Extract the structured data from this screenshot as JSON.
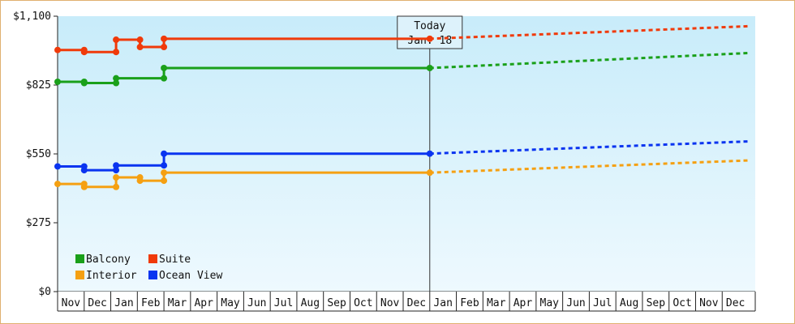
{
  "chart_data": {
    "type": "line",
    "title": "",
    "xlabel": "",
    "ylabel": "",
    "x_months": [
      "Nov",
      "Dec",
      "Jan",
      "Feb",
      "Mar",
      "Apr",
      "May",
      "Jun",
      "Jul",
      "Aug",
      "Sep",
      "Oct",
      "Nov",
      "Dec",
      "Jan",
      "Feb",
      "Mar",
      "Apr",
      "May",
      "Jun",
      "Jul",
      "Aug",
      "Sep",
      "Oct",
      "Nov",
      "Dec"
    ],
    "y_ticks": [
      {
        "value": 0,
        "label": "$0"
      },
      {
        "value": 275,
        "label": "$275"
      },
      {
        "value": 550,
        "label": "$550"
      },
      {
        "value": 825,
        "label": "$825"
      },
      {
        "value": 1100,
        "label": "$1,100"
      }
    ],
    "ylim": [
      0,
      1100
    ],
    "grid": false,
    "legend_position": "bottom-left",
    "today_marker": {
      "line1": "Today",
      "line2": "Jan. 18",
      "month_index": 14.0
    },
    "series": [
      {
        "name": "Suite",
        "color": "#f03a0a",
        "actual": [
          [
            0.0,
            965
          ],
          [
            1.0,
            965
          ],
          [
            1.0,
            957
          ],
          [
            2.2,
            957
          ],
          [
            2.2,
            1006
          ],
          [
            3.1,
            1006
          ],
          [
            3.1,
            977
          ],
          [
            4.0,
            977
          ],
          [
            4.0,
            1010
          ],
          [
            14.0,
            1010
          ]
        ],
        "projected": [
          [
            14.0,
            1010
          ],
          [
            26.0,
            1060
          ]
        ]
      },
      {
        "name": "Balcony",
        "color": "#1aa01a",
        "actual": [
          [
            0.0,
            838
          ],
          [
            1.0,
            838
          ],
          [
            1.0,
            833
          ],
          [
            2.2,
            833
          ],
          [
            2.2,
            852
          ],
          [
            4.0,
            852
          ],
          [
            4.0,
            893
          ],
          [
            14.0,
            893
          ]
        ],
        "projected": [
          [
            14.0,
            893
          ],
          [
            26.0,
            953
          ]
        ]
      },
      {
        "name": "Ocean View",
        "color": "#0a34f0",
        "actual": [
          [
            0.0,
            500
          ],
          [
            1.0,
            500
          ],
          [
            1.0,
            485
          ],
          [
            2.2,
            485
          ],
          [
            2.2,
            504
          ],
          [
            4.0,
            504
          ],
          [
            4.0,
            551
          ],
          [
            14.0,
            551
          ]
        ],
        "projected": [
          [
            14.0,
            551
          ],
          [
            26.0,
            600
          ]
        ]
      },
      {
        "name": "Interior",
        "color": "#f5a012",
        "actual": [
          [
            0.0,
            430
          ],
          [
            1.0,
            430
          ],
          [
            1.0,
            418
          ],
          [
            2.2,
            418
          ],
          [
            2.2,
            456
          ],
          [
            3.1,
            456
          ],
          [
            3.1,
            443
          ],
          [
            4.0,
            443
          ],
          [
            4.0,
            475
          ],
          [
            14.0,
            475
          ]
        ],
        "projected": [
          [
            14.0,
            475
          ],
          [
            26.0,
            524
          ]
        ]
      }
    ],
    "markers": [
      {
        "series": "Suite",
        "points": [
          [
            0.0,
            965
          ],
          [
            1.0,
            965
          ],
          [
            1.0,
            957
          ],
          [
            2.2,
            957
          ],
          [
            2.2,
            1006
          ],
          [
            3.1,
            1006
          ],
          [
            3.1,
            977
          ],
          [
            4.0,
            977
          ],
          [
            4.0,
            1010
          ],
          [
            14.0,
            1010
          ]
        ]
      },
      {
        "series": "Balcony",
        "points": [
          [
            0.0,
            838
          ],
          [
            1.0,
            838
          ],
          [
            1.0,
            833
          ],
          [
            2.2,
            833
          ],
          [
            2.2,
            852
          ],
          [
            4.0,
            852
          ],
          [
            4.0,
            893
          ],
          [
            14.0,
            893
          ]
        ]
      },
      {
        "series": "Ocean View",
        "points": [
          [
            0.0,
            500
          ],
          [
            1.0,
            500
          ],
          [
            1.0,
            485
          ],
          [
            2.2,
            485
          ],
          [
            2.2,
            504
          ],
          [
            4.0,
            504
          ],
          [
            4.0,
            551
          ],
          [
            14.0,
            551
          ]
        ]
      },
      {
        "series": "Interior",
        "points": [
          [
            0.0,
            430
          ],
          [
            1.0,
            430
          ],
          [
            1.0,
            418
          ],
          [
            2.2,
            418
          ],
          [
            2.2,
            456
          ],
          [
            3.1,
            456
          ],
          [
            3.1,
            443
          ],
          [
            4.0,
            443
          ],
          [
            4.0,
            475
          ],
          [
            14.0,
            475
          ]
        ]
      }
    ],
    "legend": [
      {
        "name": "Balcony",
        "color": "#1aa01a"
      },
      {
        "name": "Suite",
        "color": "#f03a0a"
      },
      {
        "name": "Interior",
        "color": "#f5a012"
      },
      {
        "name": "Ocean View",
        "color": "#0a34f0"
      }
    ]
  }
}
